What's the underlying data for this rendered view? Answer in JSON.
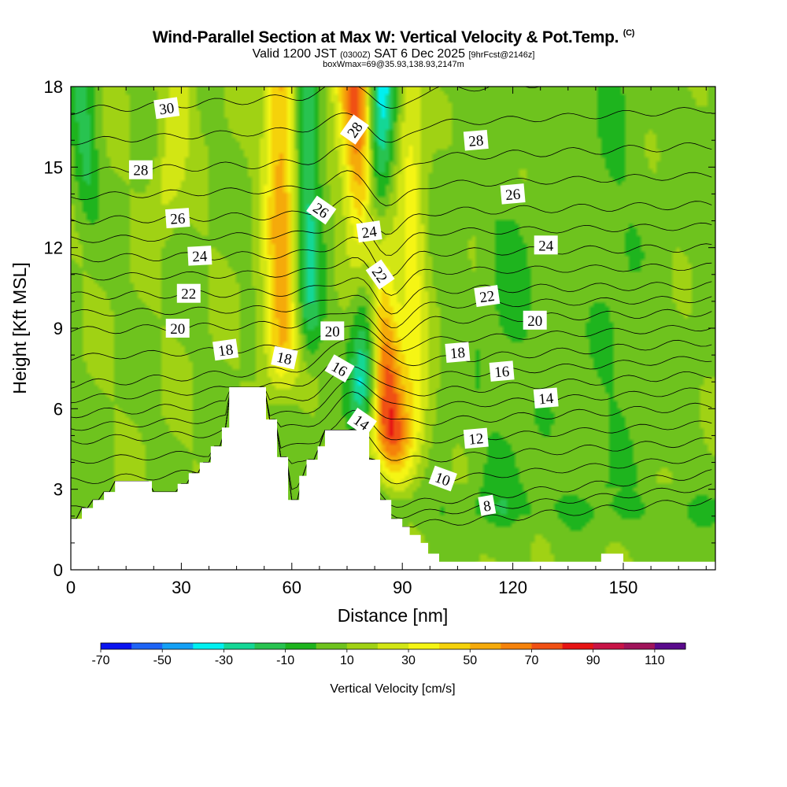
{
  "title": {
    "main": "Wind-Parallel Section at Max W: Vertical Velocity & Pot.Temp.",
    "main_mark": "(C)",
    "valid_prefix": "Valid 1200 JST",
    "valid_utc": "(0300Z)",
    "valid_date": "SAT 6 Dec 2025",
    "forecast": "[9hrFcst@2146z]",
    "boxinfo": "boxWmax=69@35.93,138.93,2147m"
  },
  "chart_data": {
    "type": "heatmap",
    "title": "Wind-Parallel Section at Max W: Vertical Velocity & Pot.Temp.",
    "xlabel": "Distance [nm]",
    "ylabel": "Height [Kft MSL]",
    "xlim": [
      0,
      175
    ],
    "ylim": [
      0,
      18
    ],
    "xticks": [
      0,
      30,
      60,
      90,
      120,
      150
    ],
    "xtick_labels": [
      "0",
      "30",
      "60",
      "90",
      "120",
      "150"
    ],
    "yticks": [
      0,
      3,
      6,
      9,
      12,
      15,
      18
    ],
    "ytick_labels": [
      "0",
      "3",
      "6",
      "9",
      "12",
      "15",
      "18"
    ],
    "colorbar": {
      "label": "Vertical Velocity [cm/s]",
      "tick_labels": [
        "-70",
        "-50",
        "-30",
        "-10",
        "10",
        "30",
        "50",
        "70",
        "90",
        "110"
      ],
      "bounds": [
        -70,
        -60,
        -50,
        -40,
        -30,
        -20,
        -10,
        0,
        10,
        20,
        30,
        40,
        50,
        60,
        70,
        80,
        90,
        100,
        110
      ],
      "colors": [
        "#0a14f0",
        "#1e64f5",
        "#14a0f5",
        "#00f0f0",
        "#14d796",
        "#28c350",
        "#1eb41e",
        "#6ec31e",
        "#a0d214",
        "#d2e614",
        "#f5f514",
        "#f5d20a",
        "#f5aa0a",
        "#f5820a",
        "#f05014",
        "#e61414",
        "#c81446",
        "#a0145a",
        "#5a0a8c"
      ]
    },
    "background_color": "#7acc14",
    "terrain": {
      "x": [
        0,
        3,
        3,
        6,
        6,
        9,
        9,
        12,
        12,
        22,
        22,
        29,
        29,
        32,
        32,
        35,
        35,
        38,
        38,
        41,
        41,
        43,
        43,
        53,
        53,
        56,
        56,
        59,
        59,
        62,
        62,
        64,
        64,
        67,
        67,
        69,
        69,
        81,
        81,
        84,
        84,
        87,
        87,
        90,
        90,
        92,
        92,
        95,
        95,
        97,
        97,
        100,
        100,
        108,
        108,
        122,
        122,
        144,
        144,
        150,
        150,
        159,
        159,
        175
      ],
      "kft": [
        1.9,
        1.9,
        2.3,
        2.3,
        2.6,
        2.6,
        2.9,
        2.9,
        3.3,
        3.3,
        2.9,
        2.9,
        3.2,
        3.2,
        3.6,
        3.6,
        4.0,
        4.0,
        4.6,
        4.6,
        5.3,
        5.3,
        6.8,
        6.8,
        5.6,
        5.6,
        4.2,
        4.2,
        2.6,
        2.6,
        3.5,
        3.5,
        4.1,
        4.1,
        4.6,
        4.6,
        5.2,
        5.2,
        4.1,
        4.1,
        2.6,
        2.6,
        1.9,
        1.9,
        1.6,
        1.6,
        1.3,
        1.3,
        1.0,
        1.0,
        0.6,
        0.6,
        0.3,
        0.3,
        0.3,
        0.3,
        0.3,
        0.3,
        0.6,
        0.6,
        0.3,
        0.3,
        0.3,
        0.3
      ]
    },
    "vertical_velocity_features": [
      {
        "name": "updraft-band-left",
        "x": 57,
        "top_x": 57,
        "half_width": 4.5,
        "bottom_kft": 6,
        "peak_cms": 45
      },
      {
        "name": "downdraft-band-left",
        "x": 65,
        "top_x": 64,
        "half_width": 3.5,
        "bottom_kft": 7,
        "peak_cms": -30
      },
      {
        "name": "updraft-main",
        "x": 89,
        "top_x": 77,
        "half_width": 5,
        "bottom_kft": 2.5,
        "peak_cms": 70
      },
      {
        "name": "downdraft-main",
        "x": 79,
        "top_x": 84,
        "half_width": 4,
        "bottom_kft": 4.5,
        "peak_cms": -55
      },
      {
        "name": "updraft-band-right",
        "x": 94,
        "top_x": 92,
        "half_width": 4,
        "bottom_kft": 3,
        "peak_cms": 25
      },
      {
        "name": "weak-updraft-upper-left",
        "x": 24,
        "top_x": 30,
        "half_width": 4,
        "bottom_kft": 12,
        "peak_cms": 20
      },
      {
        "name": "weak-downdraft-upper-left",
        "x": 5,
        "top_x": 3,
        "half_width": 3.5,
        "bottom_kft": 12,
        "peak_cms": -20
      },
      {
        "name": "weak-downdraft-right-low",
        "x": 130,
        "top_x": 130,
        "half_width": 45,
        "bottom_kft": 0,
        "peak_cms": -4
      }
    ],
    "theta_contours_left_kft": [
      [
        8,
        0.6
      ],
      [
        10,
        1.2
      ],
      [
        12,
        3.3
      ],
      [
        14,
        4.8
      ],
      [
        16,
        5.8
      ],
      [
        18,
        6.9
      ],
      [
        20,
        8.9
      ],
      [
        22,
        10.2
      ],
      [
        24,
        11.6
      ],
      [
        26,
        13.0
      ],
      [
        28,
        14.8
      ],
      [
        30,
        17.1
      ]
    ],
    "theta_contours_right_kft": [
      [
        8,
        2.6
      ],
      [
        10,
        3.6
      ],
      [
        12,
        4.8
      ],
      [
        14,
        6.1
      ],
      [
        16,
        7.3
      ],
      [
        18,
        8.5
      ],
      [
        20,
        9.6
      ],
      [
        22,
        10.6
      ],
      [
        24,
        12.0
      ],
      [
        26,
        13.6
      ],
      [
        28,
        15.8
      ],
      [
        30,
        18.5
      ]
    ],
    "theta_labels": [
      {
        "text": "30",
        "x": 26,
        "kft": 17.2,
        "angle": -8
      },
      {
        "text": "28",
        "x": 19,
        "kft": 14.9,
        "angle": 0
      },
      {
        "text": "26",
        "x": 29,
        "kft": 13.1,
        "angle": -4
      },
      {
        "text": "24",
        "x": 35,
        "kft": 11.7,
        "angle": -3
      },
      {
        "text": "22",
        "x": 32,
        "kft": 10.3,
        "angle": 0
      },
      {
        "text": "20",
        "x": 29,
        "kft": 9.0,
        "angle": 0
      },
      {
        "text": "18",
        "x": 42,
        "kft": 8.2,
        "angle": -8
      },
      {
        "text": "18",
        "x": 58,
        "kft": 7.9,
        "angle": 12
      },
      {
        "text": "20",
        "x": 71,
        "kft": 8.9,
        "angle": 0
      },
      {
        "text": "16",
        "x": 73,
        "kft": 7.5,
        "angle": 30
      },
      {
        "text": "14",
        "x": 79,
        "kft": 5.5,
        "angle": 35
      },
      {
        "text": "28",
        "x": 77,
        "kft": 16.4,
        "angle": -55
      },
      {
        "text": "26",
        "x": 68,
        "kft": 13.4,
        "angle": 35
      },
      {
        "text": "24",
        "x": 81,
        "kft": 12.6,
        "angle": -8
      },
      {
        "text": "22",
        "x": 84,
        "kft": 11.0,
        "angle": 55
      },
      {
        "text": "28",
        "x": 110,
        "kft": 16.0,
        "angle": -5
      },
      {
        "text": "26",
        "x": 120,
        "kft": 14.0,
        "angle": -5
      },
      {
        "text": "24",
        "x": 129,
        "kft": 12.1,
        "angle": 0
      },
      {
        "text": "22",
        "x": 113,
        "kft": 10.2,
        "angle": -8
      },
      {
        "text": "20",
        "x": 126,
        "kft": 9.3,
        "angle": 0
      },
      {
        "text": "18",
        "x": 105,
        "kft": 8.1,
        "angle": -5
      },
      {
        "text": "16",
        "x": 117,
        "kft": 7.4,
        "angle": -5
      },
      {
        "text": "14",
        "x": 129,
        "kft": 6.4,
        "angle": -5
      },
      {
        "text": "12",
        "x": 110,
        "kft": 4.9,
        "angle": -5
      },
      {
        "text": "10",
        "x": 101,
        "kft": 3.4,
        "angle": 20
      },
      {
        "text": "8",
        "x": 113,
        "kft": 2.4,
        "angle": -10
      }
    ]
  }
}
